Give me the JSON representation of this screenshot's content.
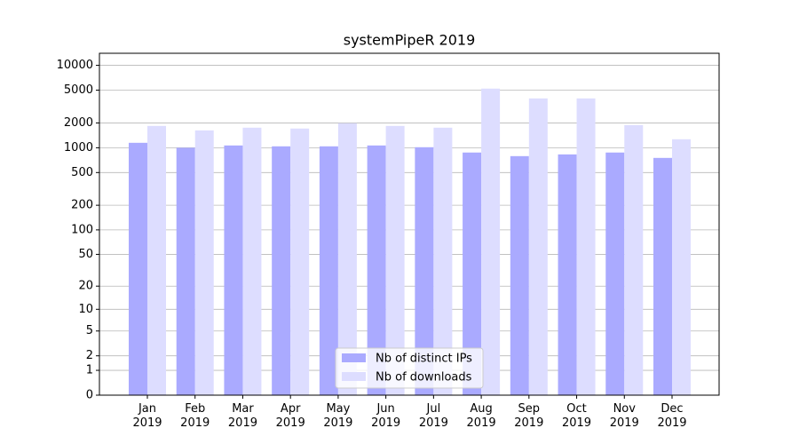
{
  "chart_data": {
    "type": "bar",
    "title": "systemPipeR 2019",
    "categories": [
      "Jan\n2019",
      "Feb\n2019",
      "Mar\n2019",
      "Apr\n2019",
      "May\n2019",
      "Jun\n2019",
      "Jul\n2019",
      "Aug\n2019",
      "Sep\n2019",
      "Oct\n2019",
      "Nov\n2019",
      "Dec\n2019"
    ],
    "series": [
      {
        "name": "Nb of distinct IPs",
        "color": "#aaaaff",
        "values": [
          1148,
          1000,
          1066,
          1040,
          1040,
          1066,
          1015,
          875,
          791,
          830,
          875,
          753
        ]
      },
      {
        "name": "Nb of downloads",
        "color": "#ddddff",
        "values": [
          1840,
          1625,
          1752,
          1710,
          1983,
          1840,
          1752,
          5220,
          3970,
          3970,
          1888,
          1268
        ]
      }
    ],
    "yscale": "symlog",
    "ylim": [
      0,
      14000
    ],
    "yticks": [
      0,
      1,
      2,
      5,
      10,
      20,
      50,
      100,
      200,
      500,
      1000,
      2000,
      5000,
      10000
    ],
    "grid": true,
    "legend": "lower center"
  }
}
